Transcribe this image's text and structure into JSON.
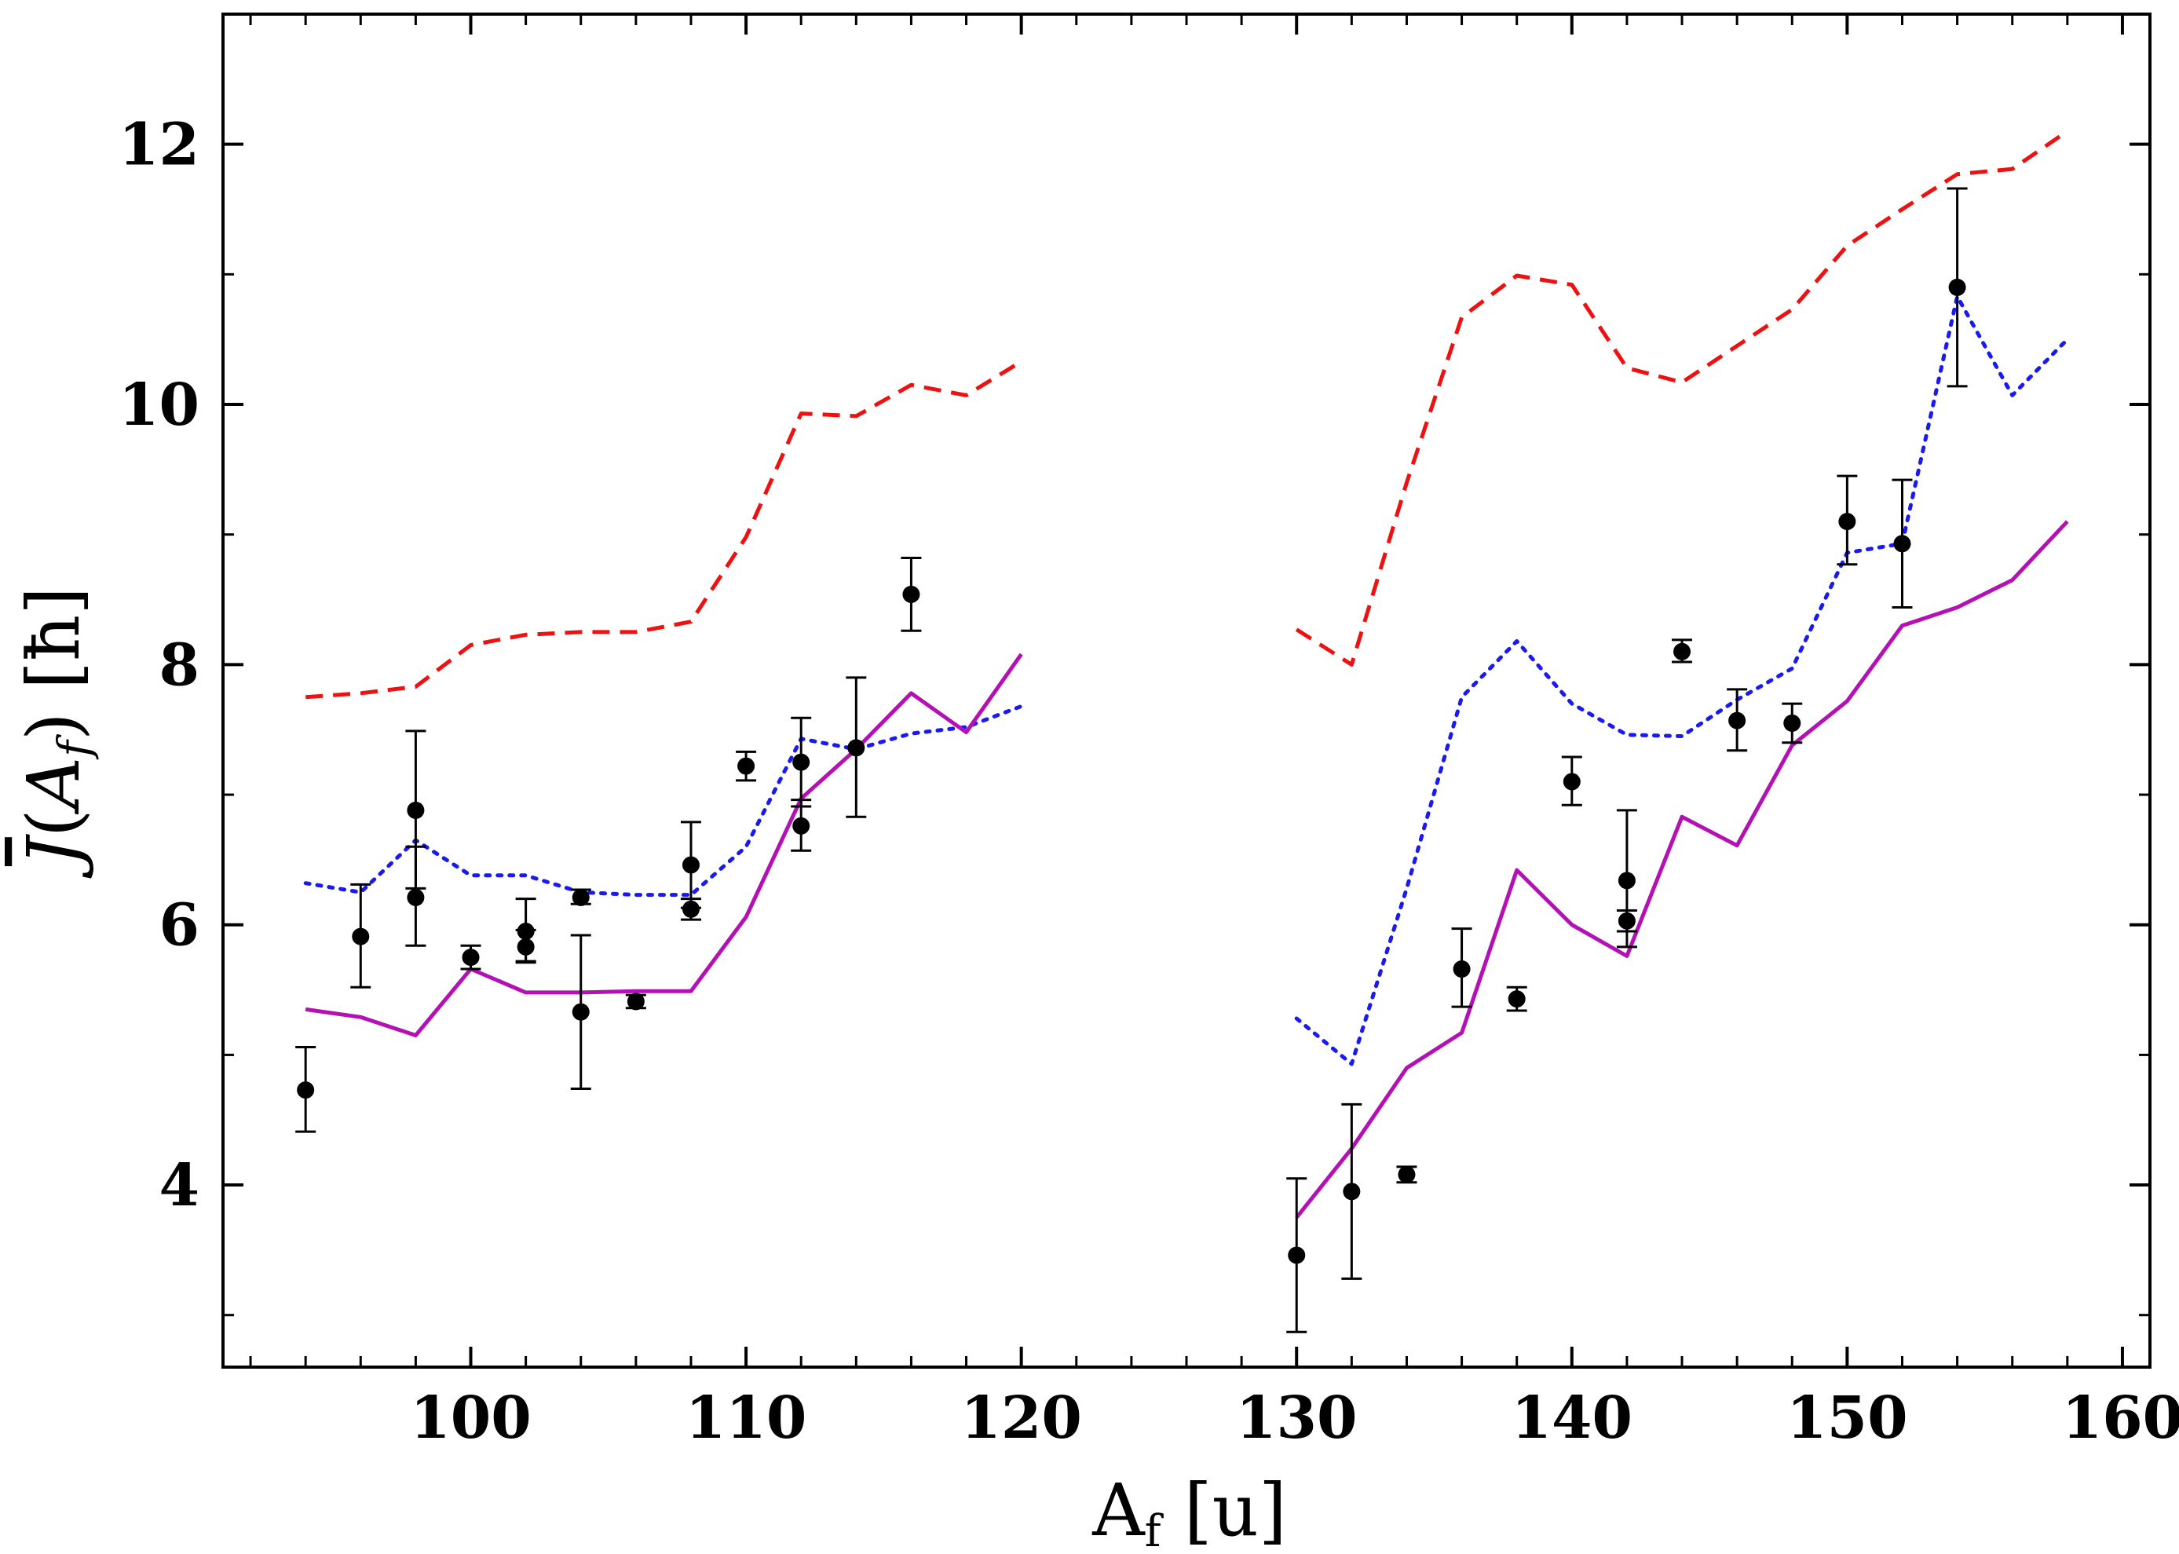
{
  "chart_data": {
    "type": "line",
    "title": "",
    "xlabel": "Af [u]",
    "ylabel": "J̄(Af) [ħ]",
    "xlim": [
      91,
      161
    ],
    "ylim": [
      2.6,
      13.0
    ],
    "x_ticks": [
      100,
      110,
      120,
      130,
      140,
      150,
      160
    ],
    "x_tick_labels": [
      "100",
      "110",
      "120",
      "130",
      "140",
      "150",
      "160"
    ],
    "y_ticks": [
      4,
      6,
      8,
      10,
      12
    ],
    "y_tick_labels": [
      "4",
      "6",
      "8",
      "10",
      "12"
    ],
    "x_minor_step": 2,
    "y_minor_step": 1,
    "grid": false,
    "series": [
      {
        "name": "dashed-red",
        "style": "dashed",
        "color": "#ee1111",
        "segments": [
          {
            "x": [
              94,
              96,
              98,
              100,
              102,
              104,
              106,
              108,
              110,
              112,
              114,
              116,
              118,
              120
            ],
            "y": [
              7.75,
              7.78,
              7.83,
              8.15,
              8.23,
              8.25,
              8.25,
              8.33,
              8.98,
              9.93,
              9.91,
              10.15,
              10.07,
              10.33
            ]
          },
          {
            "x": [
              130,
              132,
              134,
              136,
              138,
              140,
              142,
              144,
              146,
              148,
              150,
              152,
              154,
              156,
              158
            ],
            "y": [
              8.27,
              8.0,
              9.4,
              10.67,
              10.99,
              10.92,
              10.28,
              10.17,
              10.45,
              10.73,
              11.22,
              11.5,
              11.77,
              11.81,
              12.1
            ]
          }
        ]
      },
      {
        "name": "dotted-blue",
        "style": "dotted",
        "color": "#1a1aee",
        "segments": [
          {
            "x": [
              94,
              96,
              98,
              100,
              102,
              104,
              106,
              108,
              110,
              112,
              114,
              116,
              118,
              120
            ],
            "y": [
              6.32,
              6.25,
              6.65,
              6.38,
              6.38,
              6.25,
              6.23,
              6.23,
              6.6,
              7.43,
              7.35,
              7.47,
              7.52,
              7.68
            ]
          },
          {
            "x": [
              130,
              132,
              134,
              136,
              138,
              140,
              142,
              144,
              146,
              148,
              150,
              152,
              154,
              156,
              158
            ],
            "y": [
              5.28,
              4.93,
              6.28,
              7.75,
              8.18,
              7.7,
              7.46,
              7.45,
              7.73,
              7.97,
              8.86,
              8.93,
              10.83,
              10.07,
              10.5
            ]
          }
        ]
      },
      {
        "name": "solid-magenta",
        "style": "solid",
        "color": "#b411b4",
        "segments": [
          {
            "x": [
              94,
              96,
              98,
              100,
              102,
              104,
              106,
              108,
              110,
              112,
              114,
              116,
              118,
              120
            ],
            "y": [
              5.35,
              5.29,
              5.15,
              5.66,
              5.48,
              5.48,
              5.49,
              5.49,
              6.06,
              6.97,
              7.35,
              7.78,
              7.48,
              8.08
            ]
          },
          {
            "x": [
              130,
              132,
              134,
              136,
              138,
              140,
              142,
              144,
              146,
              148,
              150,
              152,
              154,
              156,
              158
            ],
            "y": [
              3.75,
              4.28,
              4.9,
              5.17,
              6.42,
              6.0,
              5.76,
              6.83,
              6.61,
              7.38,
              7.72,
              8.3,
              8.44,
              8.65,
              9.1
            ]
          }
        ]
      }
    ],
    "points": {
      "name": "experimental",
      "color": "#000000",
      "data": [
        {
          "x": 94,
          "y": 4.73,
          "lo": 4.41,
          "hi": 5.06
        },
        {
          "x": 96,
          "y": 5.91,
          "lo": 5.52,
          "hi": 6.31
        },
        {
          "x": 98,
          "y": 6.88,
          "lo": 6.28,
          "hi": 7.49
        },
        {
          "x": 98,
          "y": 6.21,
          "lo": 5.84,
          "hi": 6.6
        },
        {
          "x": 100,
          "y": 5.75,
          "lo": 5.66,
          "hi": 5.84
        },
        {
          "x": 102,
          "y": 5.95,
          "lo": 5.72,
          "hi": 6.2
        },
        {
          "x": 102,
          "y": 5.83,
          "lo": 5.71,
          "hi": 5.96
        },
        {
          "x": 104,
          "y": 6.21,
          "lo": 6.16,
          "hi": 6.27
        },
        {
          "x": 104,
          "y": 5.33,
          "lo": 4.74,
          "hi": 5.92
        },
        {
          "x": 106,
          "y": 5.41,
          "lo": 5.36,
          "hi": 5.46
        },
        {
          "x": 108,
          "y": 6.46,
          "lo": 6.13,
          "hi": 6.79
        },
        {
          "x": 108,
          "y": 6.12,
          "lo": 6.04,
          "hi": 6.2
        },
        {
          "x": 110,
          "y": 7.22,
          "lo": 7.11,
          "hi": 7.33
        },
        {
          "x": 112,
          "y": 7.25,
          "lo": 6.91,
          "hi": 7.59
        },
        {
          "x": 112,
          "y": 6.76,
          "lo": 6.57,
          "hi": 6.96
        },
        {
          "x": 114,
          "y": 7.36,
          "lo": 6.83,
          "hi": 7.9
        },
        {
          "x": 116,
          "y": 8.54,
          "lo": 8.26,
          "hi": 8.82
        },
        {
          "x": 130,
          "y": 3.46,
          "lo": 2.87,
          "hi": 4.05
        },
        {
          "x": 132,
          "y": 3.95,
          "lo": 3.28,
          "hi": 4.62
        },
        {
          "x": 134,
          "y": 4.08,
          "lo": 4.02,
          "hi": 4.14
        },
        {
          "x": 136,
          "y": 5.66,
          "lo": 5.37,
          "hi": 5.97
        },
        {
          "x": 138,
          "y": 5.43,
          "lo": 5.34,
          "hi": 5.52
        },
        {
          "x": 140,
          "y": 7.1,
          "lo": 6.92,
          "hi": 7.29
        },
        {
          "x": 142,
          "y": 6.34,
          "lo": 5.83,
          "hi": 6.88
        },
        {
          "x": 142,
          "y": 6.03,
          "lo": 5.95,
          "hi": 6.11
        },
        {
          "x": 144,
          "y": 8.1,
          "lo": 8.02,
          "hi": 8.19
        },
        {
          "x": 146,
          "y": 7.57,
          "lo": 7.34,
          "hi": 7.81
        },
        {
          "x": 148,
          "y": 7.55,
          "lo": 7.4,
          "hi": 7.7
        },
        {
          "x": 150,
          "y": 9.1,
          "lo": 8.77,
          "hi": 9.45
        },
        {
          "x": 152,
          "y": 8.93,
          "lo": 8.44,
          "hi": 9.42
        },
        {
          "x": 154,
          "y": 10.9,
          "lo": 10.14,
          "hi": 11.66
        }
      ]
    }
  }
}
